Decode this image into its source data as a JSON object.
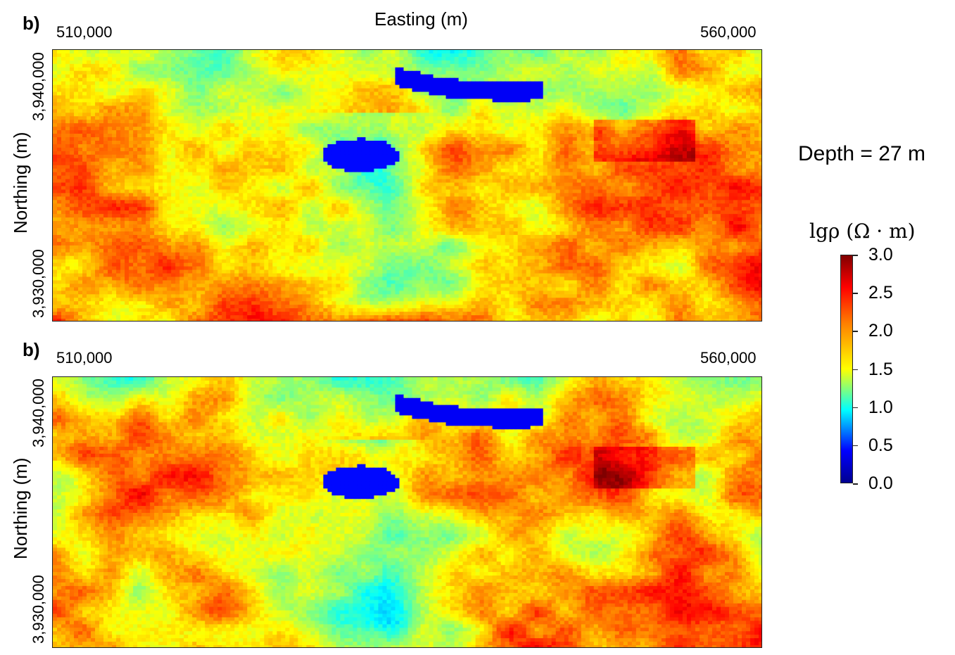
{
  "figure": {
    "panels": [
      {
        "label": "b)",
        "x_axis_title": "Easting (m)",
        "x_tick_left": "510,000",
        "x_tick_right": "560,000",
        "y_axis_title": "Northing (m)",
        "y_tick_top": "3,940,000",
        "y_tick_bottom": "3,930,000"
      },
      {
        "label": "b)",
        "x_tick_left": "510,000",
        "x_tick_right": "560,000",
        "y_axis_title": "Northing (m)",
        "y_tick_top": "3,940,000",
        "y_tick_bottom": "3,930,000"
      }
    ],
    "depth_annotation": "Depth = 27 m",
    "colorbar": {
      "title": "lgρ (Ω · m)",
      "ticks": [
        "3.0",
        "2.5",
        "2.0",
        "1.5",
        "1.0",
        "0.5",
        "0.0"
      ],
      "range": [
        0.0,
        3.0
      ],
      "colormap": "jet",
      "stops": [
        "#00008f",
        "#0000ff",
        "#00ffff",
        "#ffff00",
        "#ff8000",
        "#ff0000",
        "#800000"
      ]
    }
  }
}
